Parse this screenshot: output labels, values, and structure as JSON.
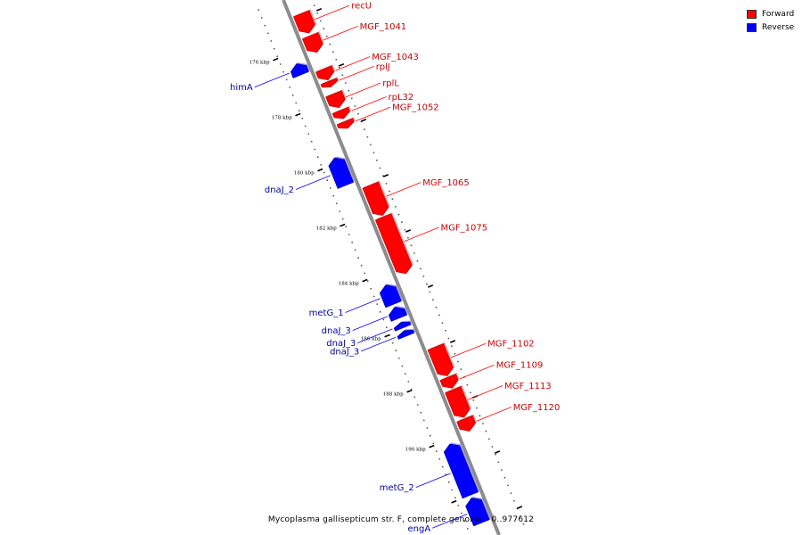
{
  "legend": {
    "forward_label": "Forward",
    "reverse_label": "Reverse",
    "forward_color": "#ff0000",
    "reverse_color": "#0000ff"
  },
  "caption": "Mycoplasma gallisepticum str. F, complete genome - 0..977612",
  "axis": {
    "unit": "kbp",
    "tick_labels": [
      "176 kbp",
      "178 kbp",
      "180 kbp",
      "182 kbp",
      "184 kbp",
      "186 kbp",
      "188 kbp",
      "190 kbp"
    ]
  },
  "genes": [
    {
      "name": "recU",
      "strand": "forward",
      "start_kbp": 174.9,
      "end_kbp": 175.6
    },
    {
      "name": "MGF_1041",
      "strand": "forward",
      "start_kbp": 175.7,
      "end_kbp": 176.3
    },
    {
      "name": "himA",
      "strand": "reverse",
      "start_kbp": 176.4,
      "end_kbp": 176.8
    },
    {
      "name": "MGF_1043",
      "strand": "forward",
      "start_kbp": 176.9,
      "end_kbp": 177.3
    },
    {
      "name": "rplJ",
      "strand": "forward",
      "start_kbp": 177.35,
      "end_kbp": 177.55
    },
    {
      "name": "rplL",
      "strand": "forward",
      "start_kbp": 177.8,
      "end_kbp": 178.3
    },
    {
      "name": "rpL32",
      "strand": "forward",
      "start_kbp": 178.4,
      "end_kbp": 178.7
    },
    {
      "name": "MGF_1052",
      "strand": "forward",
      "start_kbp": 178.8,
      "end_kbp": 179.05
    },
    {
      "name": "dnaJ_2",
      "strand": "reverse",
      "start_kbp": 179.8,
      "end_kbp": 180.8
    },
    {
      "name": "MGF_1065",
      "strand": "forward",
      "start_kbp": 181.1,
      "end_kbp": 182.2
    },
    {
      "name": "MGF_1075",
      "strand": "forward",
      "start_kbp": 182.25,
      "end_kbp": 184.3
    },
    {
      "name": "metG_1",
      "strand": "reverse",
      "start_kbp": 184.4,
      "end_kbp": 185.1
    },
    {
      "name": "dnaJ_3",
      "strand": "reverse",
      "start_kbp": 185.2,
      "end_kbp": 185.6
    },
    {
      "name": "dnaJ_3",
      "strand": "reverse",
      "start_kbp": 185.75,
      "end_kbp": 185.95
    },
    {
      "name": "dnaJ_3",
      "strand": "reverse",
      "start_kbp": 186.05,
      "end_kbp": 186.25
    },
    {
      "name": "MGF_1102",
      "strand": "forward",
      "start_kbp": 186.95,
      "end_kbp": 188.0
    },
    {
      "name": "MGF_1109",
      "strand": "forward",
      "start_kbp": 188.05,
      "end_kbp": 188.45
    },
    {
      "name": "MGF_1113",
      "strand": "forward",
      "start_kbp": 188.5,
      "end_kbp": 189.5
    },
    {
      "name": "MGF_1120",
      "strand": "forward",
      "start_kbp": 189.55,
      "end_kbp": 190.0
    },
    {
      "name": "metG_2",
      "strand": "reverse",
      "start_kbp": 190.15,
      "end_kbp": 192.0
    },
    {
      "name": "engA",
      "strand": "reverse",
      "start_kbp": 192.1,
      "end_kbp": 193.0
    }
  ]
}
